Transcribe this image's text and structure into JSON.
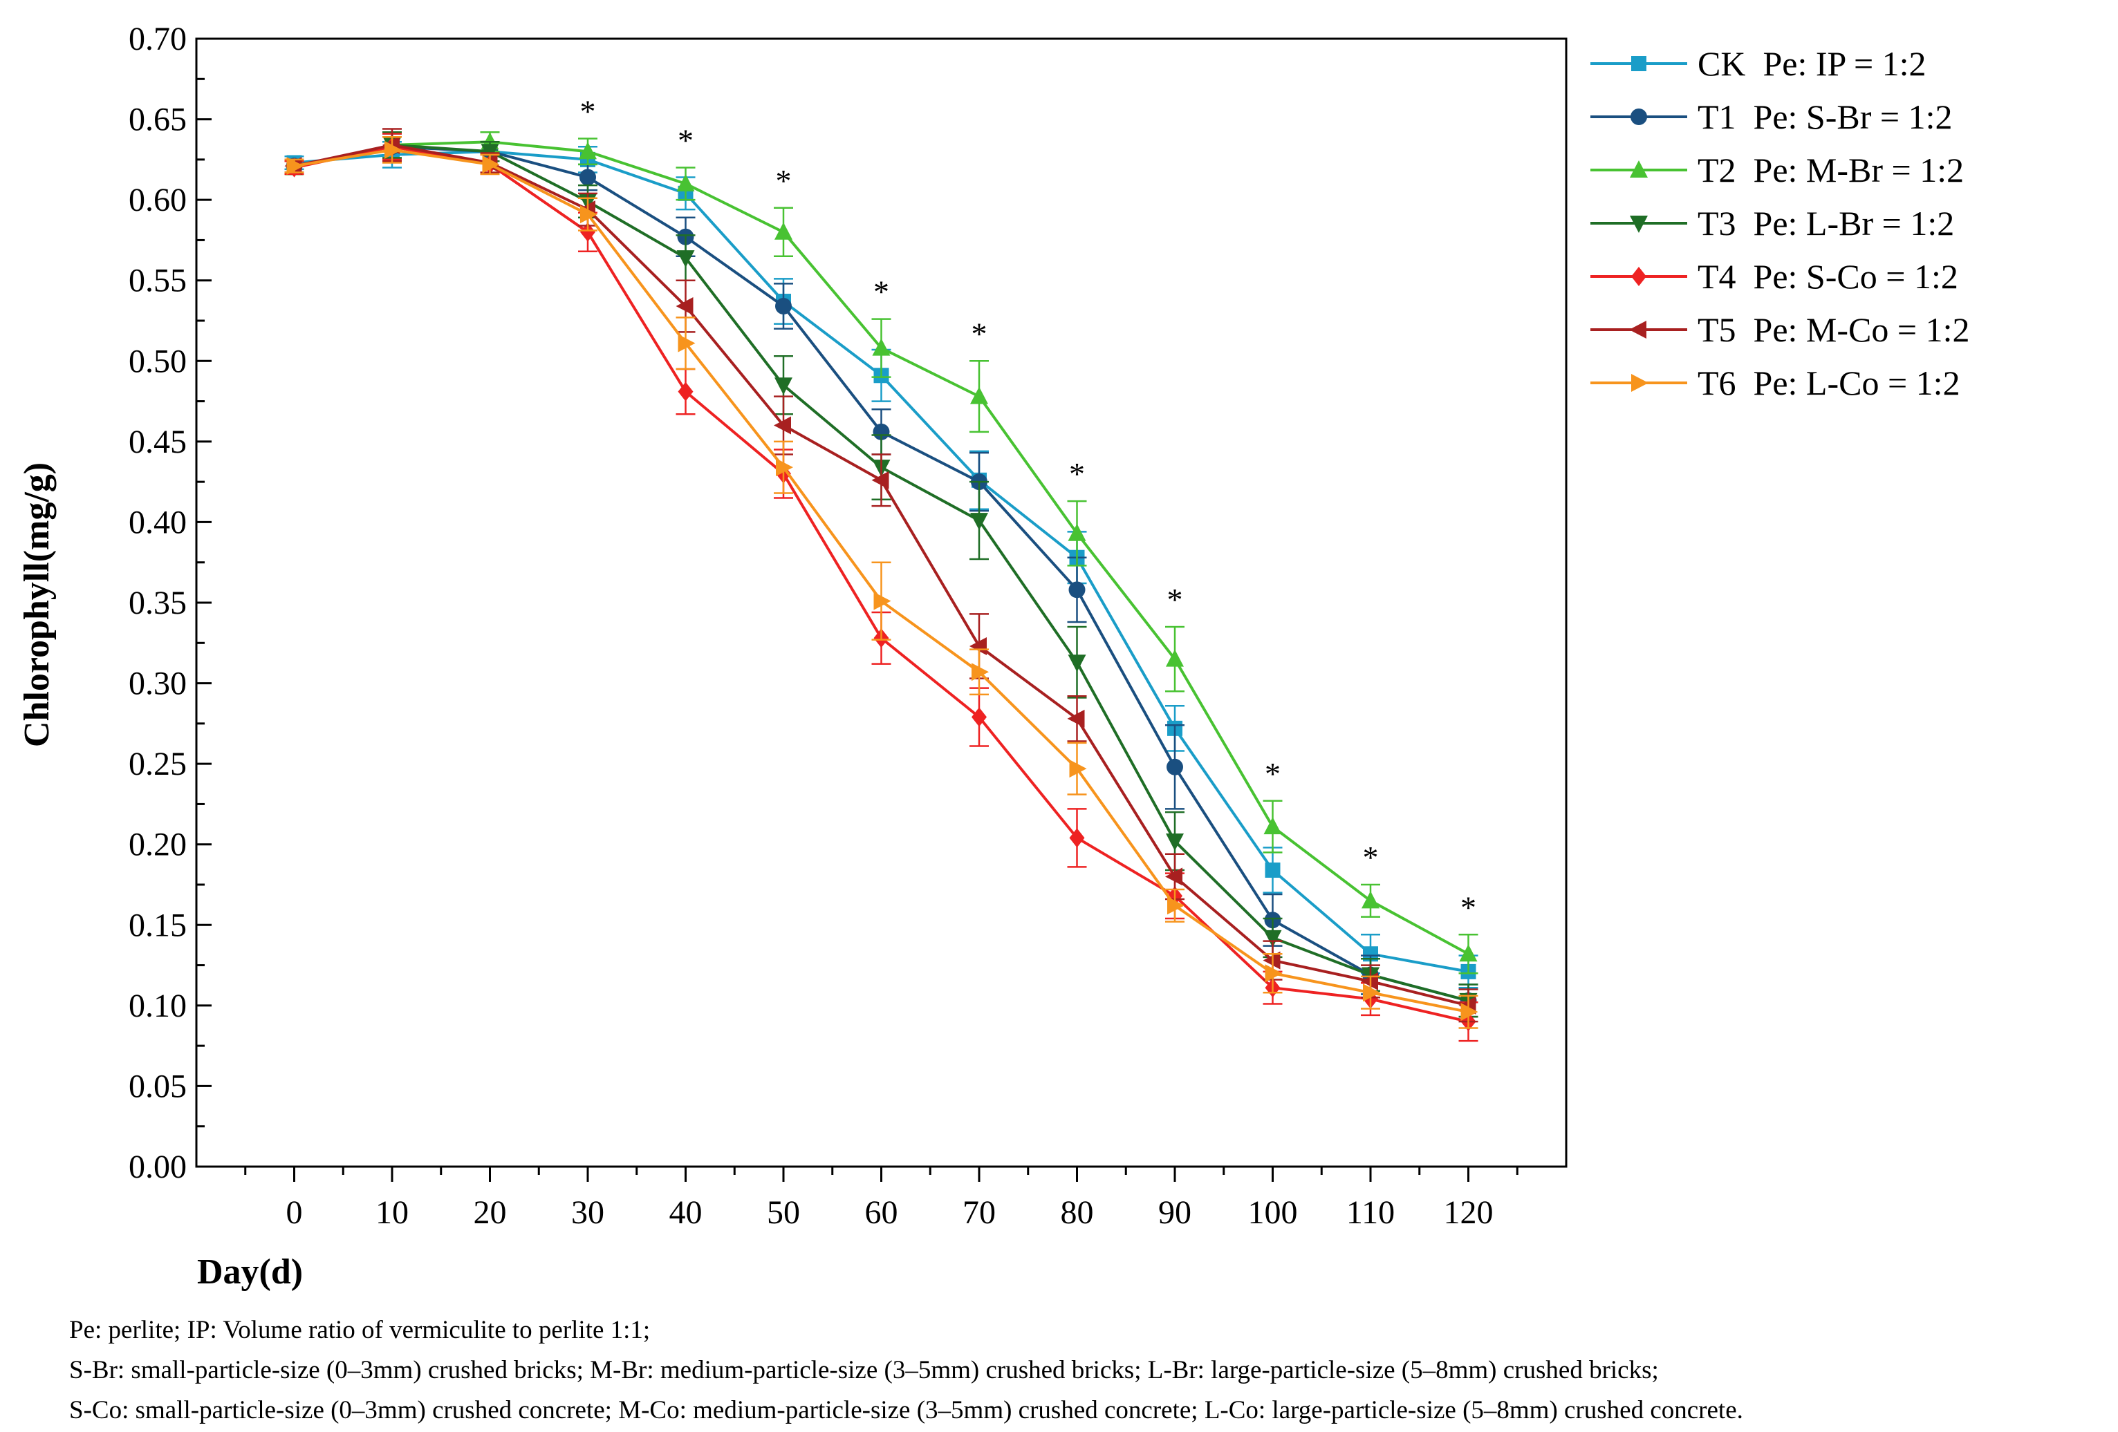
{
  "chart_data": {
    "type": "line",
    "title": "",
    "xlabel": "Day(d)",
    "ylabel": "Chlorophyll(mg/g)",
    "x": [
      0,
      10,
      20,
      30,
      40,
      50,
      60,
      70,
      80,
      90,
      100,
      110,
      120
    ],
    "x_ticks": [
      "0",
      "10",
      "20",
      "30",
      "40",
      "50",
      "60",
      "70",
      "80",
      "90",
      "100",
      "110",
      "120"
    ],
    "xlim": [
      -10,
      130
    ],
    "ylim": [
      0,
      0.7
    ],
    "y_ticks": [
      "0.00",
      "0.05",
      "0.10",
      "0.15",
      "0.20",
      "0.25",
      "0.30",
      "0.35",
      "0.40",
      "0.45",
      "0.50",
      "0.55",
      "0.60",
      "0.65",
      "0.70"
    ],
    "legend_position": "outside-top-right",
    "significance_marker": "*",
    "significance_days": [
      30,
      40,
      50,
      60,
      70,
      80,
      90,
      100,
      110,
      120
    ],
    "series": [
      {
        "name": "CK  Pe: IP = 1:2",
        "color": "#1a9dc8",
        "marker": "square",
        "values": [
          0.623,
          0.628,
          0.63,
          0.625,
          0.604,
          0.537,
          0.491,
          0.426,
          0.378,
          0.272,
          0.184,
          0.132,
          0.121
        ],
        "errors": [
          0.004,
          0.008,
          0.006,
          0.008,
          0.01,
          0.014,
          0.016,
          0.018,
          0.016,
          0.014,
          0.014,
          0.012,
          0.01
        ]
      },
      {
        "name": "T1  Pe: S-Br = 1:2",
        "color": "#1a4f80",
        "marker": "circle",
        "values": [
          0.621,
          0.633,
          0.63,
          0.614,
          0.577,
          0.534,
          0.456,
          0.425,
          0.358,
          0.248,
          0.153,
          0.119,
          0.103
        ],
        "errors": [
          0.004,
          0.008,
          0.006,
          0.008,
          0.012,
          0.014,
          0.014,
          0.018,
          0.02,
          0.026,
          0.016,
          0.012,
          0.01
        ]
      },
      {
        "name": "T2  Pe: M-Br = 1:2",
        "color": "#48c232",
        "marker": "triangle-up",
        "values": [
          0.62,
          0.634,
          0.636,
          0.63,
          0.61,
          0.58,
          0.508,
          0.478,
          0.393,
          0.315,
          0.211,
          0.165,
          0.132
        ],
        "errors": [
          0.004,
          0.008,
          0.006,
          0.008,
          0.01,
          0.015,
          0.018,
          0.022,
          0.02,
          0.02,
          0.016,
          0.01,
          0.012
        ]
      },
      {
        "name": "T3  Pe: L-Br = 1:2",
        "color": "#1f6e26",
        "marker": "triangle-down",
        "values": [
          0.62,
          0.634,
          0.63,
          0.599,
          0.564,
          0.485,
          0.434,
          0.401,
          0.313,
          0.202,
          0.142,
          0.119,
          0.103
        ],
        "errors": [
          0.004,
          0.008,
          0.006,
          0.01,
          0.014,
          0.018,
          0.02,
          0.024,
          0.022,
          0.018,
          0.012,
          0.01,
          0.01
        ]
      },
      {
        "name": "T4  Pe: S-Co = 1:2",
        "color": "#ee2222",
        "marker": "diamond",
        "values": [
          0.62,
          0.633,
          0.622,
          0.58,
          0.481,
          0.43,
          0.328,
          0.279,
          0.204,
          0.168,
          0.111,
          0.104,
          0.09
        ],
        "errors": [
          0.004,
          0.008,
          0.006,
          0.012,
          0.014,
          0.015,
          0.016,
          0.018,
          0.018,
          0.014,
          0.01,
          0.01,
          0.012
        ]
      },
      {
        "name": "T5  Pe: M-Co = 1:2",
        "color": "#a82020",
        "marker": "triangle-left",
        "values": [
          0.621,
          0.634,
          0.623,
          0.594,
          0.534,
          0.46,
          0.426,
          0.323,
          0.278,
          0.18,
          0.128,
          0.115,
          0.1
        ],
        "errors": [
          0.004,
          0.01,
          0.006,
          0.01,
          0.016,
          0.018,
          0.016,
          0.02,
          0.014,
          0.014,
          0.012,
          0.01,
          0.01
        ]
      },
      {
        "name": "T6  Pe: L-Co = 1:2",
        "color": "#f7941d",
        "marker": "triangle-right",
        "values": [
          0.621,
          0.631,
          0.622,
          0.591,
          0.511,
          0.434,
          0.351,
          0.307,
          0.247,
          0.162,
          0.12,
          0.108,
          0.096
        ],
        "errors": [
          0.004,
          0.008,
          0.006,
          0.01,
          0.016,
          0.016,
          0.024,
          0.014,
          0.016,
          0.01,
          0.012,
          0.01,
          0.01
        ]
      }
    ]
  },
  "notes": [
    "Pe: perlite; IP: Volume ratio of vermiculite to perlite 1:1;",
    "S-Br: small-particle-size (0–3mm) crushed bricks; M-Br: medium-particle-size (3–5mm) crushed bricks; L-Br: large-particle-size (5–8mm) crushed bricks;",
    "S-Co: small-particle-size (0–3mm) crushed concrete; M-Co: medium-particle-size (3–5mm) crushed concrete; L-Co: large-particle-size (5–8mm) crushed concrete."
  ]
}
